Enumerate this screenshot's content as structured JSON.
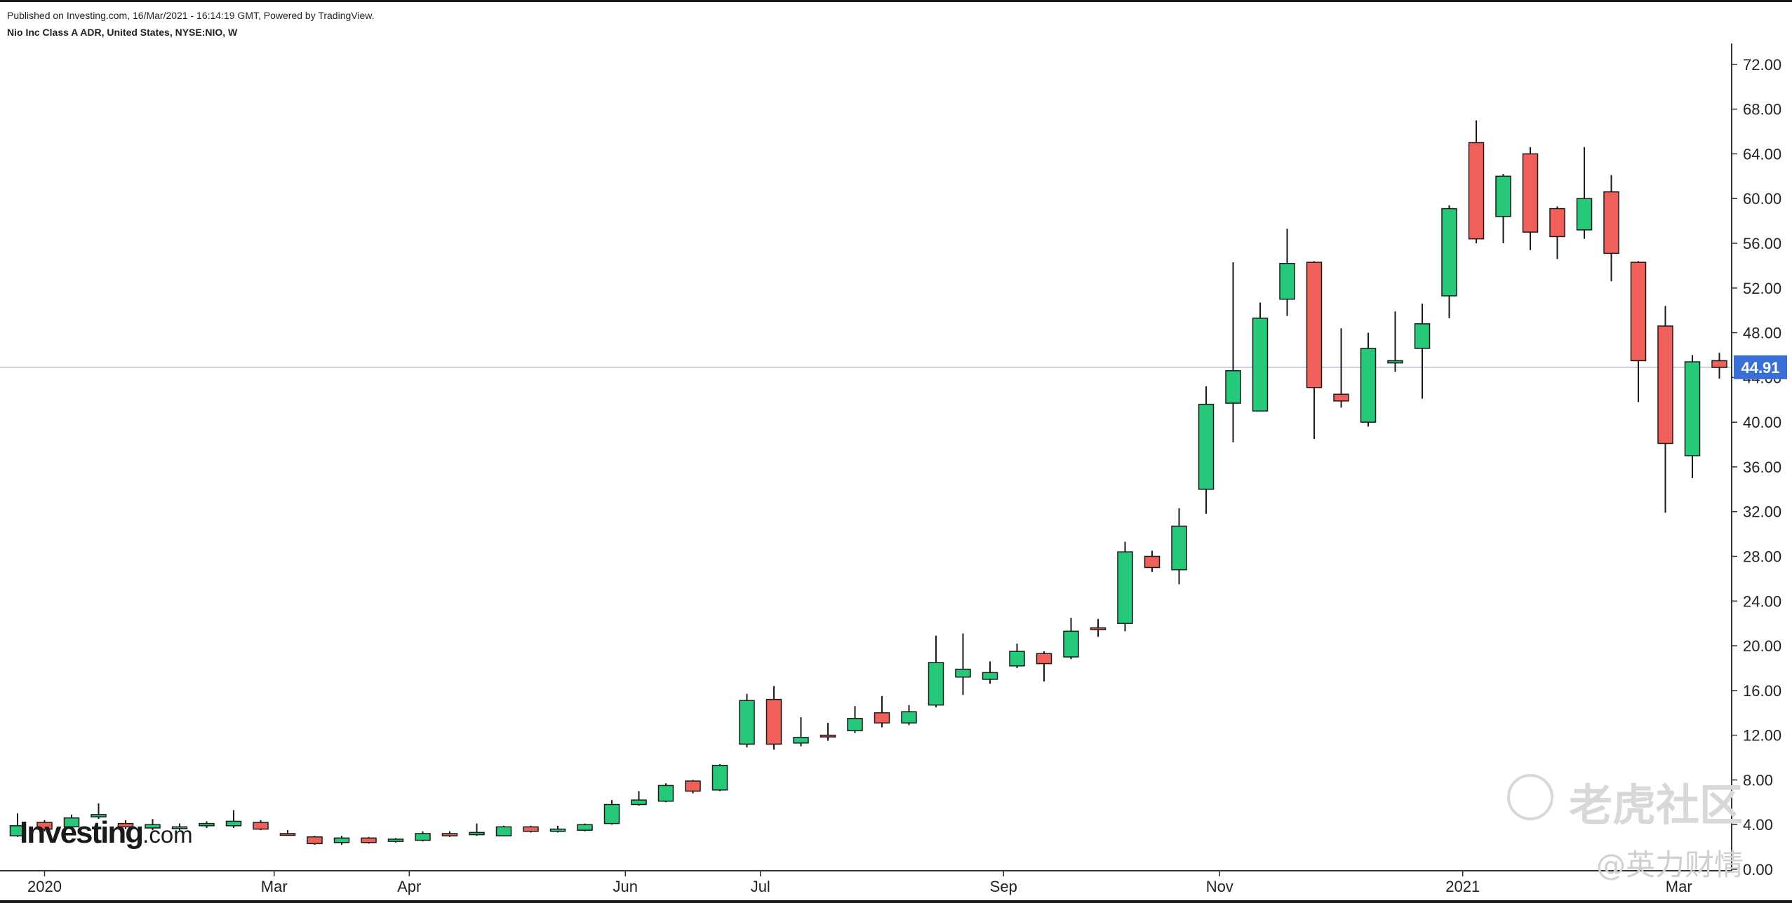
{
  "header": {
    "published": "Published on Investing.com, 16/Mar/2021 - 16:14:19 GMT, Powered by TradingView.",
    "subtitle": "Nio Inc Class A ADR, United States, NYSE:NIO, W"
  },
  "brand": {
    "name": "Investing",
    "suffix": ".com"
  },
  "watermark": {
    "logo_text": "老虎社区",
    "handle": "@英力财情"
  },
  "colors": {
    "up": "#26c97a",
    "down": "#f0605a",
    "wick": "#1a1a1a",
    "price_tag": "#3a6fd8",
    "price_line": "#b8c4e6",
    "axis": "#333333"
  },
  "chart_data": {
    "type": "candlestick",
    "interval": "W",
    "symbol": "NYSE:NIO",
    "current_price": 44.91,
    "current_price_label": "44.91",
    "ylim": [
      0,
      74
    ],
    "y_ticks": [
      "0.00",
      "4.00",
      "8.00",
      "12.00",
      "16.00",
      "20.00",
      "24.00",
      "28.00",
      "32.00",
      "36.00",
      "40.00",
      "44.00",
      "48.00",
      "52.00",
      "56.00",
      "60.00",
      "64.00",
      "68.00",
      "72.00"
    ],
    "x_ticks": [
      {
        "label": "2020",
        "index": 1
      },
      {
        "label": "Mar",
        "index": 9.5
      },
      {
        "label": "Apr",
        "index": 14.5
      },
      {
        "label": "Jun",
        "index": 22.5
      },
      {
        "label": "Jul",
        "index": 27.5
      },
      {
        "label": "Sep",
        "index": 36.5
      },
      {
        "label": "Nov",
        "index": 44.5
      },
      {
        "label": "2021",
        "index": 53.5
      },
      {
        "label": "Mar",
        "index": 61.5
      }
    ],
    "candles": [
      {
        "o": 3.0,
        "h": 5.0,
        "l": 2.9,
        "c": 3.9
      },
      {
        "o": 4.2,
        "h": 4.4,
        "l": 3.4,
        "c": 3.6
      },
      {
        "o": 3.8,
        "h": 4.9,
        "l": 3.7,
        "c": 4.6
      },
      {
        "o": 4.7,
        "h": 5.9,
        "l": 4.5,
        "c": 4.9
      },
      {
        "o": 4.1,
        "h": 4.4,
        "l": 3.6,
        "c": 3.8
      },
      {
        "o": 3.7,
        "h": 4.5,
        "l": 3.5,
        "c": 4.0
      },
      {
        "o": 3.7,
        "h": 4.1,
        "l": 3.5,
        "c": 3.8
      },
      {
        "o": 3.9,
        "h": 4.3,
        "l": 3.7,
        "c": 4.1
      },
      {
        "o": 3.9,
        "h": 5.3,
        "l": 3.7,
        "c": 4.3
      },
      {
        "o": 4.2,
        "h": 4.4,
        "l": 3.5,
        "c": 3.6
      },
      {
        "o": 3.2,
        "h": 3.5,
        "l": 3.0,
        "c": 3.1
      },
      {
        "o": 2.9,
        "h": 3.0,
        "l": 2.2,
        "c": 2.3
      },
      {
        "o": 2.4,
        "h": 3.0,
        "l": 2.2,
        "c": 2.8
      },
      {
        "o": 2.8,
        "h": 2.9,
        "l": 2.3,
        "c": 2.4
      },
      {
        "o": 2.5,
        "h": 2.8,
        "l": 2.4,
        "c": 2.7
      },
      {
        "o": 2.6,
        "h": 3.4,
        "l": 2.5,
        "c": 3.2
      },
      {
        "o": 3.2,
        "h": 3.4,
        "l": 2.9,
        "c": 3.0
      },
      {
        "o": 3.1,
        "h": 4.1,
        "l": 3.0,
        "c": 3.3
      },
      {
        "o": 3.0,
        "h": 3.9,
        "l": 3.0,
        "c": 3.8
      },
      {
        "o": 3.8,
        "h": 3.9,
        "l": 3.3,
        "c": 3.4
      },
      {
        "o": 3.4,
        "h": 3.9,
        "l": 3.3,
        "c": 3.6
      },
      {
        "o": 3.5,
        "h": 4.1,
        "l": 3.4,
        "c": 4.0
      },
      {
        "o": 4.1,
        "h": 6.2,
        "l": 4.0,
        "c": 5.8
      },
      {
        "o": 5.8,
        "h": 7.0,
        "l": 5.7,
        "c": 6.2
      },
      {
        "o": 6.1,
        "h": 7.7,
        "l": 6.0,
        "c": 7.5
      },
      {
        "o": 7.9,
        "h": 8.0,
        "l": 6.8,
        "c": 7.0
      },
      {
        "o": 7.1,
        "h": 9.4,
        "l": 7.0,
        "c": 9.3
      },
      {
        "o": 11.2,
        "h": 15.7,
        "l": 10.9,
        "c": 15.1
      },
      {
        "o": 15.2,
        "h": 16.4,
        "l": 10.7,
        "c": 11.2
      },
      {
        "o": 11.3,
        "h": 13.6,
        "l": 11.0,
        "c": 11.8
      },
      {
        "o": 12.0,
        "h": 13.1,
        "l": 11.5,
        "c": 11.9
      },
      {
        "o": 12.4,
        "h": 14.6,
        "l": 12.2,
        "c": 13.5
      },
      {
        "o": 14.0,
        "h": 15.5,
        "l": 12.7,
        "c": 13.1
      },
      {
        "o": 13.1,
        "h": 14.7,
        "l": 12.9,
        "c": 14.1
      },
      {
        "o": 14.7,
        "h": 20.9,
        "l": 14.5,
        "c": 18.5
      },
      {
        "o": 17.2,
        "h": 21.1,
        "l": 15.6,
        "c": 17.9
      },
      {
        "o": 17.0,
        "h": 18.6,
        "l": 16.6,
        "c": 17.6
      },
      {
        "o": 18.2,
        "h": 20.2,
        "l": 18.0,
        "c": 19.5
      },
      {
        "o": 19.3,
        "h": 19.5,
        "l": 16.8,
        "c": 18.4
      },
      {
        "o": 19.0,
        "h": 22.5,
        "l": 18.8,
        "c": 21.3
      },
      {
        "o": 21.6,
        "h": 22.4,
        "l": 20.8,
        "c": 21.5
      },
      {
        "o": 22.0,
        "h": 29.3,
        "l": 21.3,
        "c": 28.4
      },
      {
        "o": 28.0,
        "h": 28.5,
        "l": 26.6,
        "c": 27.0
      },
      {
        "o": 26.8,
        "h": 32.3,
        "l": 25.5,
        "c": 30.7
      },
      {
        "o": 34.0,
        "h": 43.2,
        "l": 31.8,
        "c": 41.6
      },
      {
        "o": 41.7,
        "h": 54.3,
        "l": 38.2,
        "c": 44.6
      },
      {
        "o": 41.0,
        "h": 50.7,
        "l": 41.0,
        "c": 49.3
      },
      {
        "o": 51.0,
        "h": 57.3,
        "l": 49.5,
        "c": 54.2
      },
      {
        "o": 54.3,
        "h": 54.4,
        "l": 38.5,
        "c": 43.1
      },
      {
        "o": 42.5,
        "h": 48.4,
        "l": 41.3,
        "c": 41.9
      },
      {
        "o": 40.0,
        "h": 48.0,
        "l": 39.6,
        "c": 46.6
      },
      {
        "o": 45.3,
        "h": 49.9,
        "l": 44.5,
        "c": 45.5
      },
      {
        "o": 46.6,
        "h": 50.6,
        "l": 42.1,
        "c": 48.8
      },
      {
        "o": 51.3,
        "h": 59.4,
        "l": 49.3,
        "c": 59.1
      },
      {
        "o": 65.0,
        "h": 67.0,
        "l": 56.0,
        "c": 56.4
      },
      {
        "o": 58.4,
        "h": 62.2,
        "l": 56.0,
        "c": 62.0
      },
      {
        "o": 64.0,
        "h": 64.6,
        "l": 55.4,
        "c": 57.0
      },
      {
        "o": 59.1,
        "h": 59.3,
        "l": 54.6,
        "c": 56.6
      },
      {
        "o": 57.2,
        "h": 64.6,
        "l": 56.4,
        "c": 60.0
      },
      {
        "o": 60.6,
        "h": 62.1,
        "l": 52.6,
        "c": 55.1
      },
      {
        "o": 54.3,
        "h": 54.4,
        "l": 41.8,
        "c": 45.5
      },
      {
        "o": 48.6,
        "h": 50.4,
        "l": 31.9,
        "c": 38.1
      },
      {
        "o": 37.0,
        "h": 46.0,
        "l": 35.0,
        "c": 45.4
      },
      {
        "o": 45.5,
        "h": 46.2,
        "l": 43.9,
        "c": 44.9
      }
    ]
  }
}
